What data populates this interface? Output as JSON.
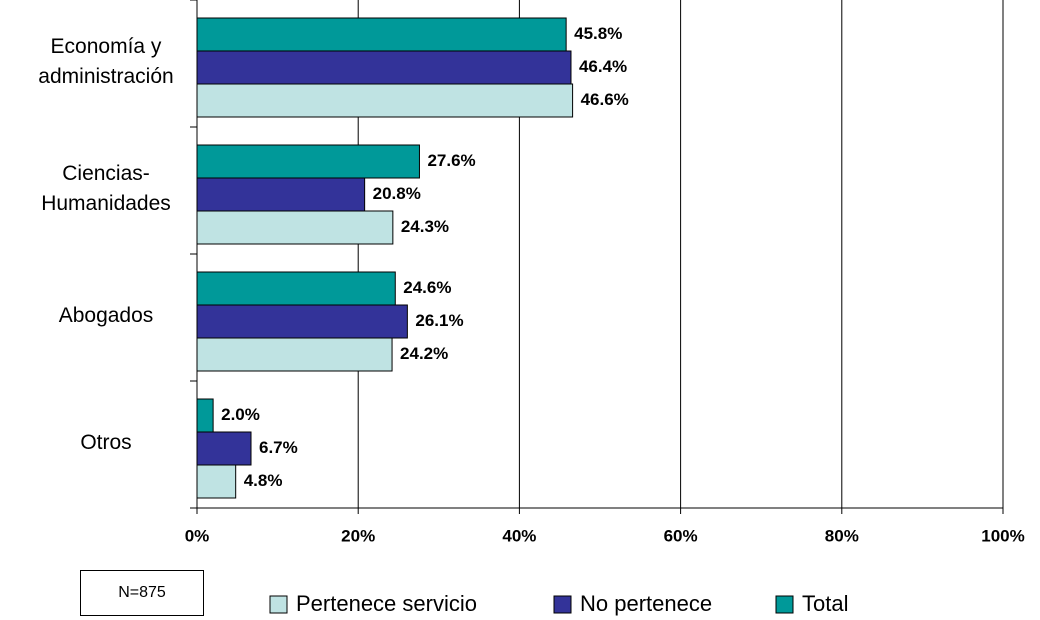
{
  "chart_data": {
    "type": "hbar",
    "categories": [
      "Economía y administración",
      "Ciencias-Humanidades",
      "Abogados",
      "Otros"
    ],
    "series": [
      {
        "name": "Pertenece servicio",
        "color": "#bfe3e3",
        "values": [
          46.6,
          24.3,
          24.2,
          4.8
        ],
        "value_labels": [
          "46.6%",
          "24.3%",
          "24.2%",
          "4.8%"
        ]
      },
      {
        "name": "No pertenece",
        "color": "#333399",
        "values": [
          46.4,
          20.8,
          26.1,
          6.7
        ],
        "value_labels": [
          "46.4%",
          "20.8%",
          "26.1%",
          "6.7%"
        ]
      },
      {
        "name": "Total",
        "color": "#009999",
        "values": [
          45.8,
          27.6,
          24.6,
          2.0
        ],
        "value_labels": [
          "45.8%",
          "27.6%",
          "24.6%",
          "2.0%"
        ]
      }
    ],
    "xlim": [
      0,
      100
    ],
    "xticks": [
      {
        "value": 0,
        "label": "0%"
      },
      {
        "value": 20,
        "label": "20%"
      },
      {
        "value": 40,
        "label": "40%"
      },
      {
        "value": 60,
        "label": "60%"
      },
      {
        "value": 80,
        "label": "80%"
      },
      {
        "value": 100,
        "label": "100%"
      }
    ],
    "grid": true,
    "annotation": "N=875"
  }
}
